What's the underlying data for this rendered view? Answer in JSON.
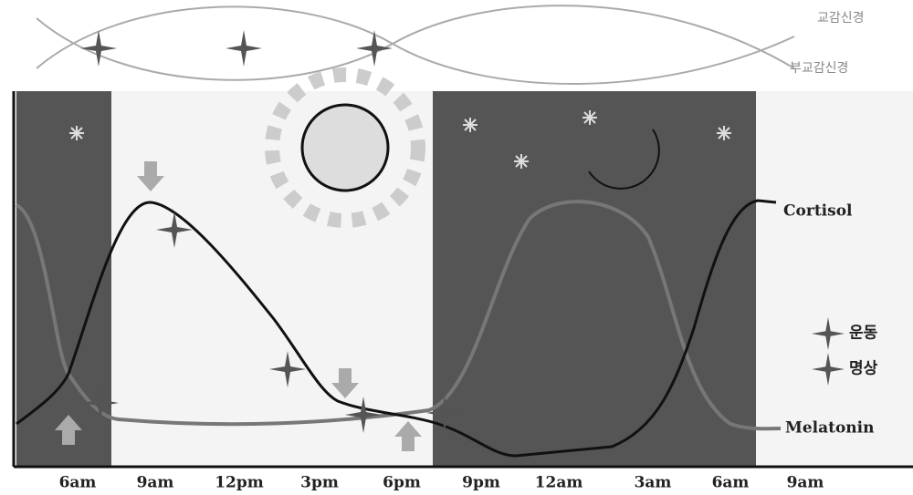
{
  "nervous": {
    "sympathetic": "교감신경",
    "parasympathetic": "부교감신경"
  },
  "curves": {
    "cortisol": "Cortisol",
    "melatonin": "Melatonin"
  },
  "legend": {
    "exercise": "운동",
    "meditation": "명상"
  },
  "time_axis": [
    "6am",
    "9am",
    "12pm",
    "3pm",
    "6pm",
    "9pm",
    "12am",
    "3am",
    "6am",
    "9am"
  ]
}
